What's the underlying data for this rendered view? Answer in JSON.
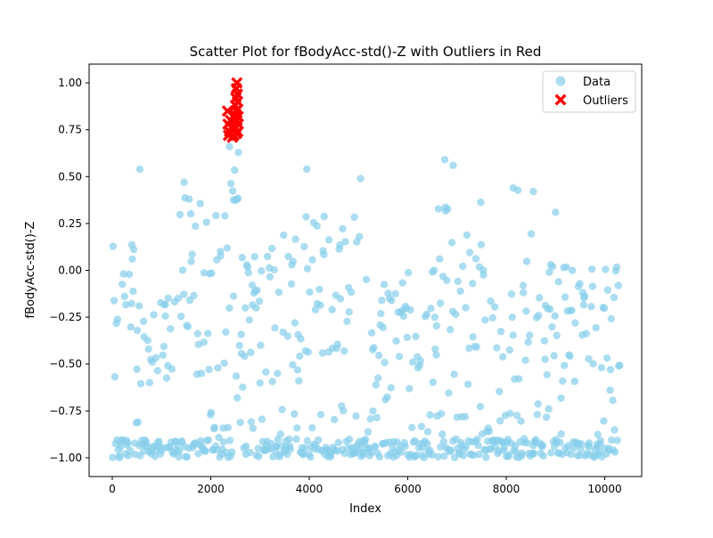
{
  "chart_data": {
    "type": "scatter",
    "title": "Scatter Plot for fBodyAcc-std()-Z with Outliers in Red",
    "xlabel": "Index",
    "ylabel": "fBodyAcc-std()-Z",
    "xlim": [
      -470,
      10750
    ],
    "ylim": [
      -1.1,
      1.1
    ],
    "x_ticks": [
      0,
      2000,
      4000,
      6000,
      8000,
      10000
    ],
    "x_tick_labels": [
      "0",
      "2000",
      "4000",
      "6000",
      "8000",
      "10000"
    ],
    "y_ticks": [
      -1.0,
      -0.75,
      -0.5,
      -0.25,
      0.0,
      0.25,
      0.5,
      0.75,
      1.0
    ],
    "y_tick_labels": [
      "−1.00",
      "−0.75",
      "−0.50",
      "−0.25",
      "0.00",
      "0.25",
      "0.50",
      "0.75",
      "1.00"
    ],
    "legend_position": "top-right",
    "grid": false,
    "series": [
      {
        "name": "Data",
        "color": "#87ceeb",
        "marker": "circle",
        "n_points_approx": 10299,
        "x_range": [
          0,
          10298
        ],
        "y_range": [
          -1.0,
          0.66
        ],
        "notable_points": [
          {
            "x": 560,
            "y": 0.54
          },
          {
            "x": 1460,
            "y": 0.47
          },
          {
            "x": 2380,
            "y": 0.66
          },
          {
            "x": 3950,
            "y": 0.54
          },
          {
            "x": 5040,
            "y": 0.49
          },
          {
            "x": 6750,
            "y": 0.59
          },
          {
            "x": 6920,
            "y": 0.56
          },
          {
            "x": 8140,
            "y": 0.44
          },
          {
            "x": 8550,
            "y": 0.42
          },
          {
            "x": 9000,
            "y": 0.31
          }
        ],
        "band_profile": [
          {
            "x_start": 0,
            "x_end": 500,
            "upper": 0.2,
            "lower": -0.6
          },
          {
            "x_start": 500,
            "x_end": 1300,
            "upper": -0.1,
            "lower": -0.6
          },
          {
            "x_start": 1300,
            "x_end": 1800,
            "upper": 0.45,
            "lower": -0.6
          },
          {
            "x_start": 1800,
            "x_end": 2300,
            "upper": 0.3,
            "lower": -0.55
          },
          {
            "x_start": 2300,
            "x_end": 2600,
            "upper": 0.66,
            "lower": -0.6
          },
          {
            "x_start": 2600,
            "x_end": 3200,
            "upper": 0.1,
            "lower": -0.45
          },
          {
            "x_start": 3200,
            "x_end": 3900,
            "upper": 0.2,
            "lower": -0.55
          },
          {
            "x_start": 3900,
            "x_end": 4800,
            "upper": 0.3,
            "lower": -0.45
          },
          {
            "x_start": 4800,
            "x_end": 5200,
            "upper": 0.49,
            "lower": -0.55
          },
          {
            "x_start": 5200,
            "x_end": 6600,
            "upper": 0.0,
            "lower": -0.6
          },
          {
            "x_start": 6600,
            "x_end": 7500,
            "upper": 0.4,
            "lower": -0.65
          },
          {
            "x_start": 7500,
            "x_end": 8100,
            "upper": 0.0,
            "lower": -0.65
          },
          {
            "x_start": 8100,
            "x_end": 8600,
            "upper": 0.44,
            "lower": -0.6
          },
          {
            "x_start": 8600,
            "x_end": 9100,
            "upper": 0.05,
            "lower": -0.55
          },
          {
            "x_start": 9100,
            "x_end": 10298,
            "upper": 0.05,
            "lower": -0.55
          }
        ]
      },
      {
        "name": "Outliers",
        "color": "#ff0000",
        "marker": "x-filled",
        "x_range": [
          2330,
          2560
        ],
        "y_range": [
          0.7,
          1.0
        ],
        "points": [
          {
            "x": 2340,
            "y": 0.85
          },
          {
            "x": 2350,
            "y": 0.78
          },
          {
            "x": 2360,
            "y": 0.72
          },
          {
            "x": 2380,
            "y": 0.74
          },
          {
            "x": 2400,
            "y": 0.8
          },
          {
            "x": 2420,
            "y": 0.76
          },
          {
            "x": 2440,
            "y": 0.71
          },
          {
            "x": 2460,
            "y": 0.75
          },
          {
            "x": 2480,
            "y": 0.79
          },
          {
            "x": 2490,
            "y": 0.83
          },
          {
            "x": 2500,
            "y": 0.88
          },
          {
            "x": 2510,
            "y": 0.92
          },
          {
            "x": 2520,
            "y": 0.97
          },
          {
            "x": 2530,
            "y": 1.0
          },
          {
            "x": 2540,
            "y": 0.94
          },
          {
            "x": 2545,
            "y": 0.9
          },
          {
            "x": 2550,
            "y": 0.86
          },
          {
            "x": 2555,
            "y": 0.82
          },
          {
            "x": 2560,
            "y": 0.78
          },
          {
            "x": 2525,
            "y": 0.73
          },
          {
            "x": 2515,
            "y": 0.85
          },
          {
            "x": 2535,
            "y": 0.8
          },
          {
            "x": 2470,
            "y": 0.72
          },
          {
            "x": 2505,
            "y": 0.76
          },
          {
            "x": 2548,
            "y": 0.74
          }
        ]
      }
    ]
  }
}
